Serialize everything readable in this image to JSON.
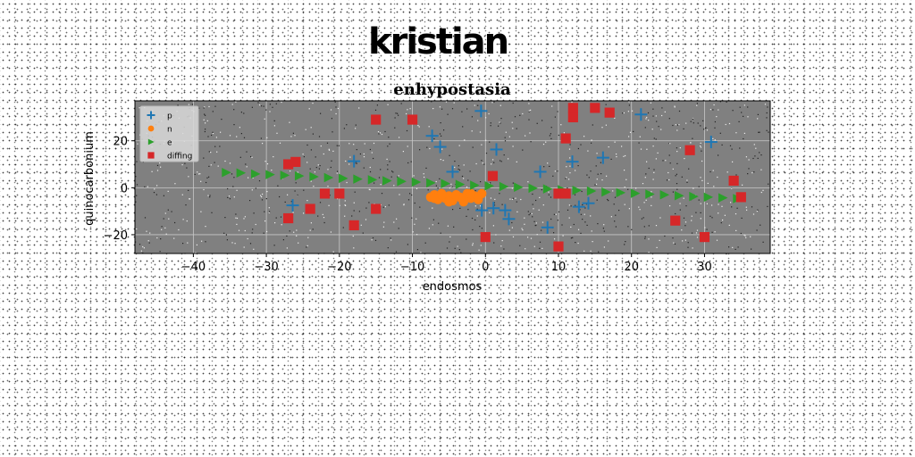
{
  "banner_text": "kristian",
  "chart_data": {
    "type": "scatter",
    "title": "enhypostasia",
    "xlabel": "endosmos",
    "ylabel": "quinocarbonium",
    "xlim": [
      -48,
      39
    ],
    "ylim": [
      -28,
      37
    ],
    "xticks": [
      -40,
      -30,
      -20,
      -10,
      0,
      10,
      20,
      30
    ],
    "yticks": [
      -20,
      0,
      20
    ],
    "grid": true,
    "legend_position": "top-left",
    "plot_background": "#808080",
    "series": [
      {
        "name": "p",
        "marker": "plus",
        "color": "#1f77b4",
        "x": [
          -26.4,
          -18,
          -7.3,
          -6.2,
          -4.5,
          -0.6,
          1.5,
          -0.5,
          1.1,
          2.7,
          3.2,
          7.5,
          8.5,
          11.9,
          12.8,
          14.1,
          16.1,
          21.3,
          30.9
        ],
        "y": [
          -7.5,
          11.3,
          22.1,
          17.4,
          6.8,
          32.7,
          16.3,
          -9.6,
          -8.7,
          -9.6,
          -13.3,
          6.8,
          -16.9,
          11.1,
          -8.1,
          -6.6,
          12.8,
          31.2,
          19.5
        ]
      },
      {
        "name": "n",
        "marker": "circle",
        "color": "#ff7f0e",
        "x": [
          -7.5,
          -7,
          -6.5,
          -6,
          -5.5,
          -5,
          -4.5,
          -4,
          -3.5,
          -3,
          -2.5,
          -2,
          -1.5,
          -1,
          -0.5,
          -7,
          -6,
          -5,
          -4,
          -3,
          -2,
          -1
        ],
        "y": [
          -4,
          -3,
          -5,
          -2.5,
          -4.5,
          -3.5,
          -5.5,
          -3,
          -4,
          -6,
          -2.5,
          -4.5,
          -3.5,
          -5,
          -2.5,
          -4.5,
          -3,
          -6,
          -3.5,
          -4.5,
          -2.5,
          -4
        ]
      },
      {
        "name": "e",
        "marker": "triangle-right",
        "color": "#2ca02c",
        "x": [
          -35.5,
          -33.5,
          -31.5,
          -29.5,
          -27.5,
          -25.5,
          -23.5,
          -21.5,
          -19.5,
          -17.5,
          -15.5,
          -13.5,
          -11.5,
          -9.5,
          -7.5,
          -5.5,
          -3.5,
          -1.5,
          0.5,
          2.5,
          4.5,
          6.5,
          8.5,
          10.5,
          12.5,
          14.5,
          16.5,
          18.5,
          20.5,
          22.5,
          24.5,
          26.5,
          28.5,
          30.5,
          32.5,
          34.5
        ],
        "y": [
          6.5,
          6.3,
          5.9,
          5.6,
          5.3,
          5.0,
          4.7,
          4.3,
          4.0,
          3.7,
          3.4,
          3.0,
          2.7,
          2.4,
          2.1,
          1.8,
          1.4,
          1.1,
          0.8,
          0.5,
          0.2,
          -0.2,
          -0.5,
          -0.8,
          -1.1,
          -1.4,
          -1.8,
          -2.1,
          -2.4,
          -2.7,
          -3.0,
          -3.4,
          -3.7,
          -4.0,
          -4.3,
          -4.6
        ]
      },
      {
        "name": "diffing",
        "marker": "square",
        "color": "#d62728",
        "x": [
          -27,
          -27,
          -26,
          -24,
          -22,
          -20,
          -18,
          -15,
          -15,
          -10,
          1,
          10,
          10,
          11,
          11,
          12,
          12,
          15,
          17,
          26,
          28,
          30,
          34,
          35,
          0
        ],
        "y": [
          -13,
          10,
          11,
          -9,
          -2.5,
          -2.5,
          -16,
          -9,
          29,
          29,
          5,
          -2.5,
          -25,
          -2.5,
          21,
          30,
          34,
          34,
          32,
          -14,
          16,
          -21,
          3,
          -4,
          -21
        ]
      }
    ]
  }
}
